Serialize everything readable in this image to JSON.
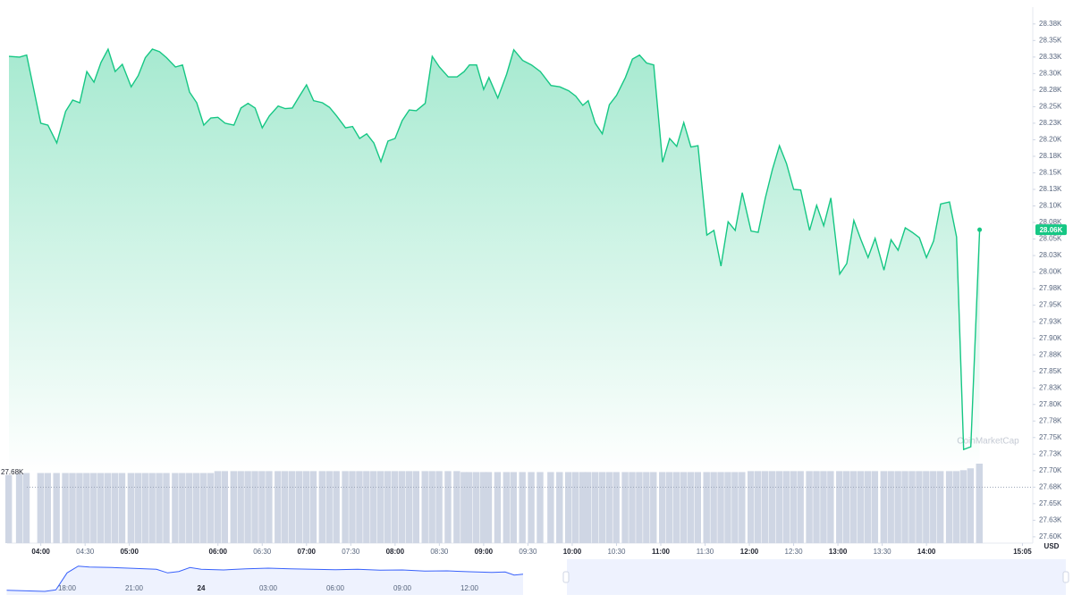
{
  "chart_data": {
    "type": "area",
    "line_color": "#16c784",
    "volume_color": "#cfd6e4",
    "x": [
      3.64,
      3.76,
      3.84,
      4.0,
      4.08,
      4.18,
      4.28,
      4.36,
      4.44,
      4.52,
      4.6,
      4.68,
      4.76,
      4.84,
      4.92,
      5.02,
      5.1,
      5.18,
      5.26,
      5.34,
      5.42,
      5.52,
      5.6,
      5.68,
      5.76,
      5.84,
      5.92,
      6.0,
      6.08,
      6.18,
      6.26,
      6.34,
      6.42,
      6.5,
      6.58,
      6.68,
      6.76,
      6.84,
      6.92,
      7.0,
      7.08,
      7.18,
      7.26,
      7.34,
      7.44,
      7.52,
      7.6,
      7.68,
      7.76,
      7.84,
      7.92,
      8.0,
      8.08,
      8.16,
      8.24,
      8.34,
      8.42,
      8.5,
      8.6,
      8.7,
      8.78,
      8.84,
      8.92,
      9.0,
      9.06,
      9.16,
      9.26,
      9.34,
      9.44,
      9.54,
      9.64,
      9.76,
      9.86,
      9.96,
      10.04,
      10.12,
      10.18,
      10.26,
      10.34,
      10.42,
      10.5,
      10.6,
      10.68,
      10.76,
      10.84,
      10.92,
      11.02,
      11.1,
      11.18,
      11.26,
      11.34,
      11.42,
      11.52,
      11.6,
      11.68,
      11.76,
      11.84,
      11.92,
      12.02,
      12.1,
      12.18,
      12.26,
      12.34,
      12.42,
      12.5,
      12.58,
      12.68,
      12.76,
      12.84,
      12.92,
      13.02,
      13.1,
      13.18,
      13.26,
      13.34,
      13.42,
      13.52,
      13.6,
      13.68,
      13.76,
      13.84,
      13.92,
      14.0,
      14.08,
      14.16,
      14.26,
      14.34,
      14.42,
      14.5,
      14.6
    ],
    "values": [
      28.326,
      28.325,
      28.328,
      28.225,
      28.222,
      28.195,
      28.243,
      28.26,
      28.256,
      28.303,
      28.287,
      28.317,
      28.337,
      28.303,
      28.314,
      28.28,
      28.297,
      28.324,
      28.337,
      28.333,
      28.324,
      28.31,
      28.313,
      28.272,
      28.256,
      28.222,
      28.233,
      28.234,
      28.225,
      28.222,
      28.248,
      28.255,
      28.248,
      28.218,
      28.236,
      28.251,
      28.247,
      28.248,
      28.266,
      28.283,
      28.259,
      28.256,
      28.249,
      28.236,
      28.218,
      28.22,
      28.202,
      28.209,
      28.195,
      28.167,
      28.198,
      28.202,
      28.229,
      28.245,
      28.244,
      28.255,
      28.326,
      28.31,
      28.295,
      28.295,
      28.303,
      28.313,
      28.313,
      28.276,
      28.294,
      28.263,
      28.299,
      28.336,
      28.32,
      28.313,
      28.303,
      28.282,
      28.28,
      28.274,
      28.266,
      28.252,
      28.259,
      28.225,
      28.209,
      28.253,
      28.267,
      28.294,
      28.322,
      28.328,
      28.316,
      28.313,
      28.166,
      28.202,
      28.19,
      28.226,
      28.189,
      28.191,
      28.056,
      28.063,
      28.009,
      28.076,
      28.063,
      28.12,
      28.062,
      28.06,
      28.112,
      28.155,
      28.191,
      28.164,
      28.125,
      28.124,
      28.063,
      28.101,
      28.07,
      28.112,
      27.997,
      28.013,
      28.078,
      28.049,
      28.022,
      28.051,
      28.003,
      28.049,
      28.033,
      28.067,
      28.06,
      28.052,
      28.022,
      28.047,
      28.103,
      28.106,
      28.053,
      27.732,
      27.736,
      28.064
    ],
    "volume": [
      73,
      74,
      75,
      75,
      75,
      75,
      75,
      75,
      75,
      75,
      75,
      75,
      75,
      75,
      75,
      75,
      75,
      75,
      75,
      75,
      75,
      75,
      75,
      75,
      75,
      75,
      75,
      77,
      77,
      77,
      77,
      77,
      77,
      77,
      77,
      77,
      77,
      77,
      77,
      77,
      77,
      77,
      77,
      77,
      77,
      77,
      77,
      77,
      77,
      77,
      77,
      77,
      77,
      77,
      77,
      77,
      77,
      77,
      77,
      77,
      76,
      76,
      76,
      76,
      76,
      76,
      76,
      76,
      76,
      76,
      76,
      76,
      76,
      76,
      76,
      76,
      76,
      76,
      76,
      76,
      76,
      76,
      76,
      76,
      76,
      76,
      76,
      76,
      76,
      76,
      76,
      76,
      76,
      76,
      76,
      76,
      76,
      76,
      77,
      77,
      77,
      77,
      77,
      77,
      77,
      77,
      77,
      77,
      77,
      77,
      77,
      77,
      77,
      77,
      77,
      77,
      77,
      77,
      77,
      77,
      77,
      77,
      77,
      77,
      77,
      77,
      77,
      78,
      80,
      85
    ],
    "last_label": "28.06K",
    "reference_line": {
      "value": 27.675,
      "label": "27.68K"
    },
    "watermark": "CoinMarketCap",
    "currency": "USD",
    "xlim": [
      3.62,
      15.2
    ],
    "ylim": [
      27.585,
      28.395
    ],
    "xticks": [
      {
        "value": 4,
        "label": "04:00"
      },
      {
        "value": 4.5,
        "label": "04:30"
      },
      {
        "value": 5,
        "label": "05:00"
      },
      {
        "value": 6,
        "label": "06:00"
      },
      {
        "value": 6.5,
        "label": "06:30"
      },
      {
        "value": 7,
        "label": "07:00"
      },
      {
        "value": 7.5,
        "label": "07:30"
      },
      {
        "value": 8,
        "label": "08:00"
      },
      {
        "value": 8.5,
        "label": "08:30"
      },
      {
        "value": 9,
        "label": "09:00"
      },
      {
        "value": 9.5,
        "label": "09:30"
      },
      {
        "value": 10,
        "label": "10:00"
      },
      {
        "value": 10.5,
        "label": "10:30"
      },
      {
        "value": 11,
        "label": "11:00"
      },
      {
        "value": 11.5,
        "label": "11:30"
      },
      {
        "value": 12,
        "label": "12:00"
      },
      {
        "value": 12.5,
        "label": "12:30"
      },
      {
        "value": 13,
        "label": "13:00"
      },
      {
        "value": 13.5,
        "label": "13:30"
      },
      {
        "value": 14,
        "label": "14:00"
      },
      {
        "value": 15.0833,
        "label": "15:05"
      }
    ],
    "yticks": [
      {
        "value": 28.375,
        "label": "28.38K"
      },
      {
        "value": 28.35,
        "label": "28.35K"
      },
      {
        "value": 28.325,
        "label": "28.33K"
      },
      {
        "value": 28.3,
        "label": "28.30K"
      },
      {
        "value": 28.275,
        "label": "28.28K"
      },
      {
        "value": 28.25,
        "label": "28.25K"
      },
      {
        "value": 28.225,
        "label": "28.23K"
      },
      {
        "value": 28.2,
        "label": "28.20K"
      },
      {
        "value": 28.175,
        "label": "28.18K"
      },
      {
        "value": 28.15,
        "label": "28.15K"
      },
      {
        "value": 28.125,
        "label": "28.13K"
      },
      {
        "value": 28.1,
        "label": "28.10K"
      },
      {
        "value": 28.075,
        "label": "28.08K"
      },
      {
        "value": 28.05,
        "label": "28.05K"
      },
      {
        "value": 28.025,
        "label": "28.03K"
      },
      {
        "value": 28.0,
        "label": "28.00K"
      },
      {
        "value": 27.975,
        "label": "27.98K"
      },
      {
        "value": 27.95,
        "label": "27.95K"
      },
      {
        "value": 27.925,
        "label": "27.93K"
      },
      {
        "value": 27.9,
        "label": "27.90K"
      },
      {
        "value": 27.875,
        "label": "27.88K"
      },
      {
        "value": 27.85,
        "label": "27.85K"
      },
      {
        "value": 27.825,
        "label": "27.83K"
      },
      {
        "value": 27.8,
        "label": "27.80K"
      },
      {
        "value": 27.775,
        "label": "27.78K"
      },
      {
        "value": 27.75,
        "label": "27.75K"
      },
      {
        "value": 27.725,
        "label": "27.73K"
      },
      {
        "value": 27.7,
        "label": "27.70K"
      },
      {
        "value": 27.675,
        "label": "27.68K"
      },
      {
        "value": 27.65,
        "label": "27.65K"
      },
      {
        "value": 27.625,
        "label": "27.63K"
      },
      {
        "value": 27.6,
        "label": "27.60K"
      }
    ],
    "navigator": {
      "color": "#3861fb",
      "x": [
        15.3,
        16,
        17,
        17.5,
        18,
        18.5,
        19,
        20,
        21,
        22,
        22.5,
        23,
        23.5,
        24,
        25,
        26,
        27,
        28,
        29,
        30,
        31,
        32,
        33,
        34,
        35,
        36,
        37,
        37.6,
        38.0,
        38.4
      ],
      "values": [
        27.52,
        27.5,
        27.48,
        27.53,
        28.1,
        28.33,
        28.3,
        28.28,
        28.25,
        28.22,
        28.1,
        28.15,
        28.28,
        28.22,
        28.2,
        28.24,
        28.26,
        28.24,
        28.22,
        28.21,
        28.22,
        28.19,
        28.2,
        28.16,
        28.17,
        28.14,
        28.12,
        28.13,
        28.03,
        28.06
      ],
      "xlim": [
        15,
        38.52
      ],
      "ylim": [
        27.3,
        28.5
      ],
      "xticks": [
        {
          "value": 18,
          "label": "18:00"
        },
        {
          "value": 21,
          "label": "21:00"
        },
        {
          "value": 24,
          "label": "24"
        },
        {
          "value": 27,
          "label": "03:00"
        },
        {
          "value": 30,
          "label": "06:00"
        },
        {
          "value": 33,
          "label": "09:00"
        },
        {
          "value": 36,
          "label": "12:00"
        }
      ]
    }
  }
}
